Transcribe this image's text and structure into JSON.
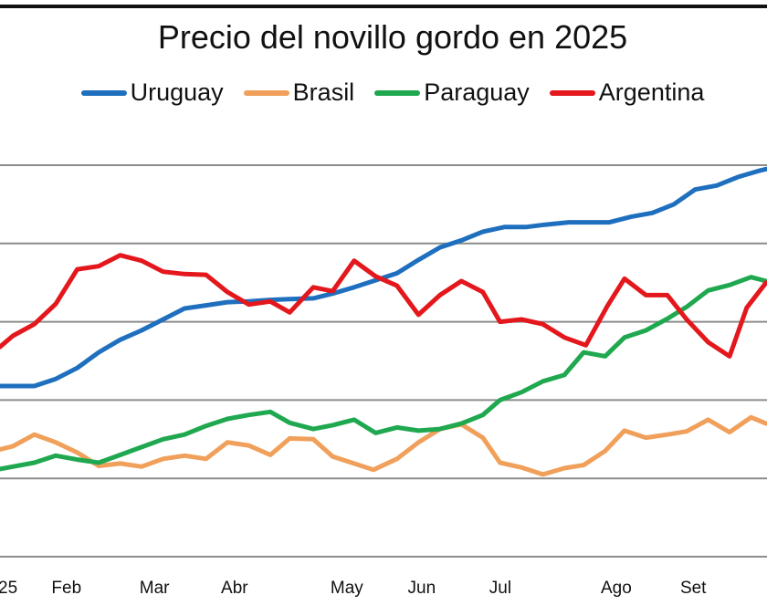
{
  "chart_data": {
    "type": "line",
    "title": "Precio del novillo gordo en 2025",
    "xlabel": "",
    "ylabel": "",
    "ylim": [
      0,
      5
    ],
    "y_gridlines": [
      0,
      1,
      2,
      3,
      4,
      5
    ],
    "grid": true,
    "legend_position": "top",
    "x_tick_labels": [
      {
        "label": "25",
        "week": 0
      },
      {
        "label": "Feb",
        "week": 2.4
      },
      {
        "label": "Mar",
        "week": 6.5
      },
      {
        "label": "Abr",
        "week": 10.3
      },
      {
        "label": "May",
        "week": 15.4
      },
      {
        "label": "Jun",
        "week": 19.0
      },
      {
        "label": "Jul",
        "week": 22.8
      },
      {
        "label": "Ago",
        "week": 28.0
      },
      {
        "label": "Set",
        "week": 31.7
      }
    ],
    "series": [
      {
        "name": "Uruguay",
        "color": "#1f6fbf",
        "weeks": [
          0,
          1.6,
          2.6,
          3.6,
          4.6,
          5.6,
          6.6,
          7.6,
          8.6,
          9.6,
          10.6,
          11.6,
          12.6,
          13.5,
          14.6,
          15.5,
          16.5,
          17.5,
          18.5,
          19.5,
          20.5,
          21.5,
          22.5,
          23.5,
          24.5,
          25.4,
          26.5,
          27.4,
          28.4,
          29.4,
          30.4,
          31.4,
          32.4,
          33.4,
          34.4,
          35.4,
          35.7
        ],
        "values": [
          2.18,
          2.18,
          2.27,
          2.41,
          2.61,
          2.77,
          2.89,
          3.03,
          3.17,
          3.21,
          3.25,
          3.26,
          3.28,
          3.29,
          3.3,
          3.36,
          3.44,
          3.53,
          3.62,
          3.79,
          3.95,
          4.04,
          4.15,
          4.21,
          4.21,
          4.24,
          4.27,
          4.27,
          4.27,
          4.34,
          4.39,
          4.5,
          4.69,
          4.74,
          4.85,
          4.93,
          4.95
        ]
      },
      {
        "name": "Brasil",
        "color": "#f0a05a",
        "weeks": [
          0,
          0.6,
          1.6,
          2.6,
          3.6,
          4.6,
          5.6,
          6.6,
          7.6,
          8.6,
          9.6,
          10.6,
          11.6,
          12.6,
          13.5,
          14.6,
          15.5,
          16.5,
          17.4,
          18.5,
          19.5,
          20.5,
          21.5,
          22.5,
          23.3,
          24.3,
          25.3,
          26.3,
          27.2,
          28.2,
          29.1,
          30.1,
          31.1,
          32.0,
          33.0,
          34.0,
          35.0,
          35.7
        ],
        "values": [
          1.37,
          1.41,
          1.56,
          1.46,
          1.33,
          1.16,
          1.19,
          1.15,
          1.25,
          1.29,
          1.25,
          1.46,
          1.42,
          1.3,
          1.51,
          1.5,
          1.28,
          1.19,
          1.11,
          1.25,
          1.46,
          1.63,
          1.69,
          1.52,
          1.2,
          1.14,
          1.05,
          1.13,
          1.17,
          1.35,
          1.61,
          1.52,
          1.56,
          1.6,
          1.75,
          1.59,
          1.78,
          1.7
        ]
      },
      {
        "name": "Paraguay",
        "color": "#1fa84f",
        "weeks": [
          0,
          0.6,
          1.6,
          2.6,
          3.6,
          4.6,
          5.6,
          6.6,
          7.6,
          8.6,
          9.6,
          10.6,
          11.6,
          12.6,
          13.5,
          14.6,
          15.5,
          16.5,
          17.5,
          18.5,
          19.5,
          20.5,
          21.5,
          22.5,
          23.3,
          24.3,
          25.3,
          26.3,
          27.2,
          28.2,
          29.1,
          30.1,
          31.1,
          32.0,
          33.0,
          34.0,
          35.0,
          35.7
        ],
        "values": [
          1.12,
          1.15,
          1.2,
          1.29,
          1.24,
          1.2,
          1.3,
          1.4,
          1.5,
          1.56,
          1.67,
          1.76,
          1.81,
          1.85,
          1.71,
          1.63,
          1.68,
          1.75,
          1.58,
          1.65,
          1.61,
          1.63,
          1.7,
          1.81,
          2.0,
          2.1,
          2.24,
          2.32,
          2.61,
          2.56,
          2.8,
          2.89,
          3.04,
          3.19,
          3.4,
          3.47,
          3.57,
          3.52
        ]
      },
      {
        "name": "Argentina",
        "color": "#e3171c",
        "weeks": [
          0,
          0.6,
          1.6,
          2.6,
          3.6,
          4.6,
          5.6,
          6.6,
          7.6,
          8.6,
          9.6,
          10.6,
          11.6,
          12.6,
          13.5,
          14.6,
          15.5,
          16.5,
          17.5,
          18.5,
          19.5,
          20.5,
          21.5,
          22.5,
          23.3,
          24.3,
          25.3,
          26.3,
          27.3,
          28.3,
          29.1,
          30.1,
          31.1,
          32.0,
          33.0,
          34.0,
          34.8,
          35.7
        ],
        "values": [
          2.68,
          2.82,
          2.97,
          3.23,
          3.67,
          3.71,
          3.85,
          3.78,
          3.64,
          3.61,
          3.6,
          3.38,
          3.22,
          3.26,
          3.12,
          3.44,
          3.39,
          3.78,
          3.58,
          3.46,
          3.09,
          3.34,
          3.52,
          3.38,
          3.0,
          3.03,
          2.97,
          2.8,
          2.7,
          3.2,
          3.55,
          3.34,
          3.34,
          3.03,
          2.74,
          2.56,
          3.18,
          3.5
        ]
      }
    ]
  }
}
